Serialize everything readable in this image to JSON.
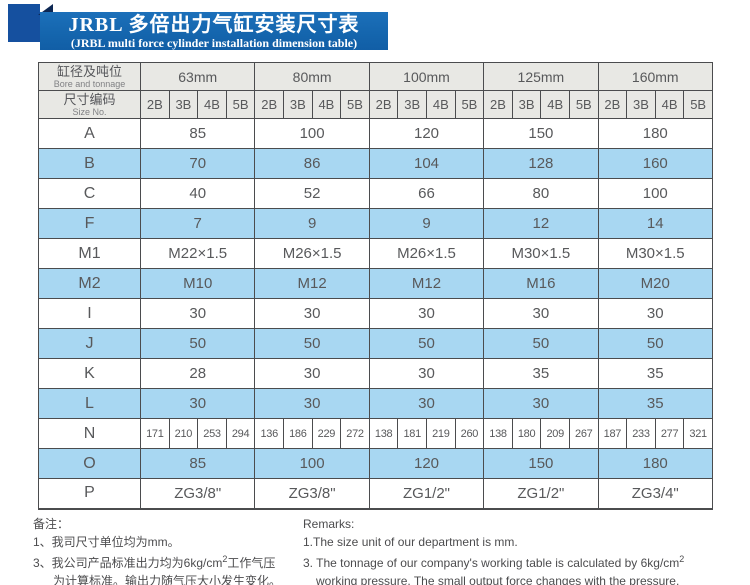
{
  "banner": {
    "title_zh": "JRBL 多倍出力气缸安装尺寸表",
    "title_en": "(JRBL multi force cylinder installation dimension table)",
    "banner_color": "#1566ae",
    "square_color": "#15509f",
    "fold_color": "#0d2753"
  },
  "table": {
    "header": {
      "bore_label_zh": "缸径及吨位",
      "bore_label_en": "Bore and tonnage",
      "size_label_zh": "尺寸编码",
      "size_label_en": "Size No.",
      "bores": [
        "63mm",
        "80mm",
        "100mm",
        "125mm",
        "160mm"
      ],
      "size_codes": [
        "2B",
        "3B",
        "4B",
        "5B"
      ]
    },
    "rows": [
      {
        "label": "A",
        "values": [
          "85",
          "100",
          "120",
          "150",
          "180"
        ]
      },
      {
        "label": "B",
        "values": [
          "70",
          "86",
          "104",
          "128",
          "160"
        ]
      },
      {
        "label": "C",
        "values": [
          "40",
          "52",
          "66",
          "80",
          "100"
        ]
      },
      {
        "label": "F",
        "values": [
          "7",
          "9",
          "9",
          "12",
          "14"
        ]
      },
      {
        "label": "M1",
        "values": [
          "M22×1.5",
          "M26×1.5",
          "M26×1.5",
          "M30×1.5",
          "M30×1.5"
        ]
      },
      {
        "label": "M2",
        "values": [
          "M10",
          "M12",
          "M12",
          "M16",
          "M20"
        ]
      },
      {
        "label": "I",
        "values": [
          "30",
          "30",
          "30",
          "30",
          "30"
        ]
      },
      {
        "label": "J",
        "values": [
          "50",
          "50",
          "50",
          "50",
          "50"
        ]
      },
      {
        "label": "K",
        "values": [
          "28",
          "30",
          "30",
          "35",
          "35"
        ]
      },
      {
        "label": "L",
        "values": [
          "30",
          "30",
          "30",
          "30",
          "35"
        ]
      },
      {
        "label": "N",
        "per_code": true,
        "values": [
          "171",
          "210",
          "253",
          "294",
          "136",
          "186",
          "229",
          "272",
          "138",
          "181",
          "219",
          "260",
          "138",
          "180",
          "209",
          "267",
          "187",
          "233",
          "277",
          "321"
        ]
      },
      {
        "label": "O",
        "values": [
          "85",
          "100",
          "120",
          "150",
          "180"
        ]
      },
      {
        "label": "P",
        "values": [
          "ZG3/8\"",
          "ZG3/8\"",
          "ZG1/2\"",
          "ZG1/2\"",
          "ZG3/4\""
        ]
      }
    ],
    "stripe_colors": {
      "white": "#ffffff",
      "blue": "#a8d7f2"
    }
  },
  "notes_zh": {
    "heading": "备注：",
    "line1": "1、我司尺寸单位均为mm。",
    "line2_pre": "3、我公司产品标准出力均为6kg/cm",
    "line2_sup": "2",
    "line2_post": "工作气压",
    "line3": "为计算标准。输出力随气压大小发生变化。"
  },
  "notes_en": {
    "heading": "Remarks:",
    "line1": "1.The size unit of our department is mm.",
    "line2_pre": "3. The tonnage of our company's working table is calculated by 6kg/cm",
    "line2_sup": "2",
    "line3": "working pressure. The small output force changes with the pressure."
  }
}
